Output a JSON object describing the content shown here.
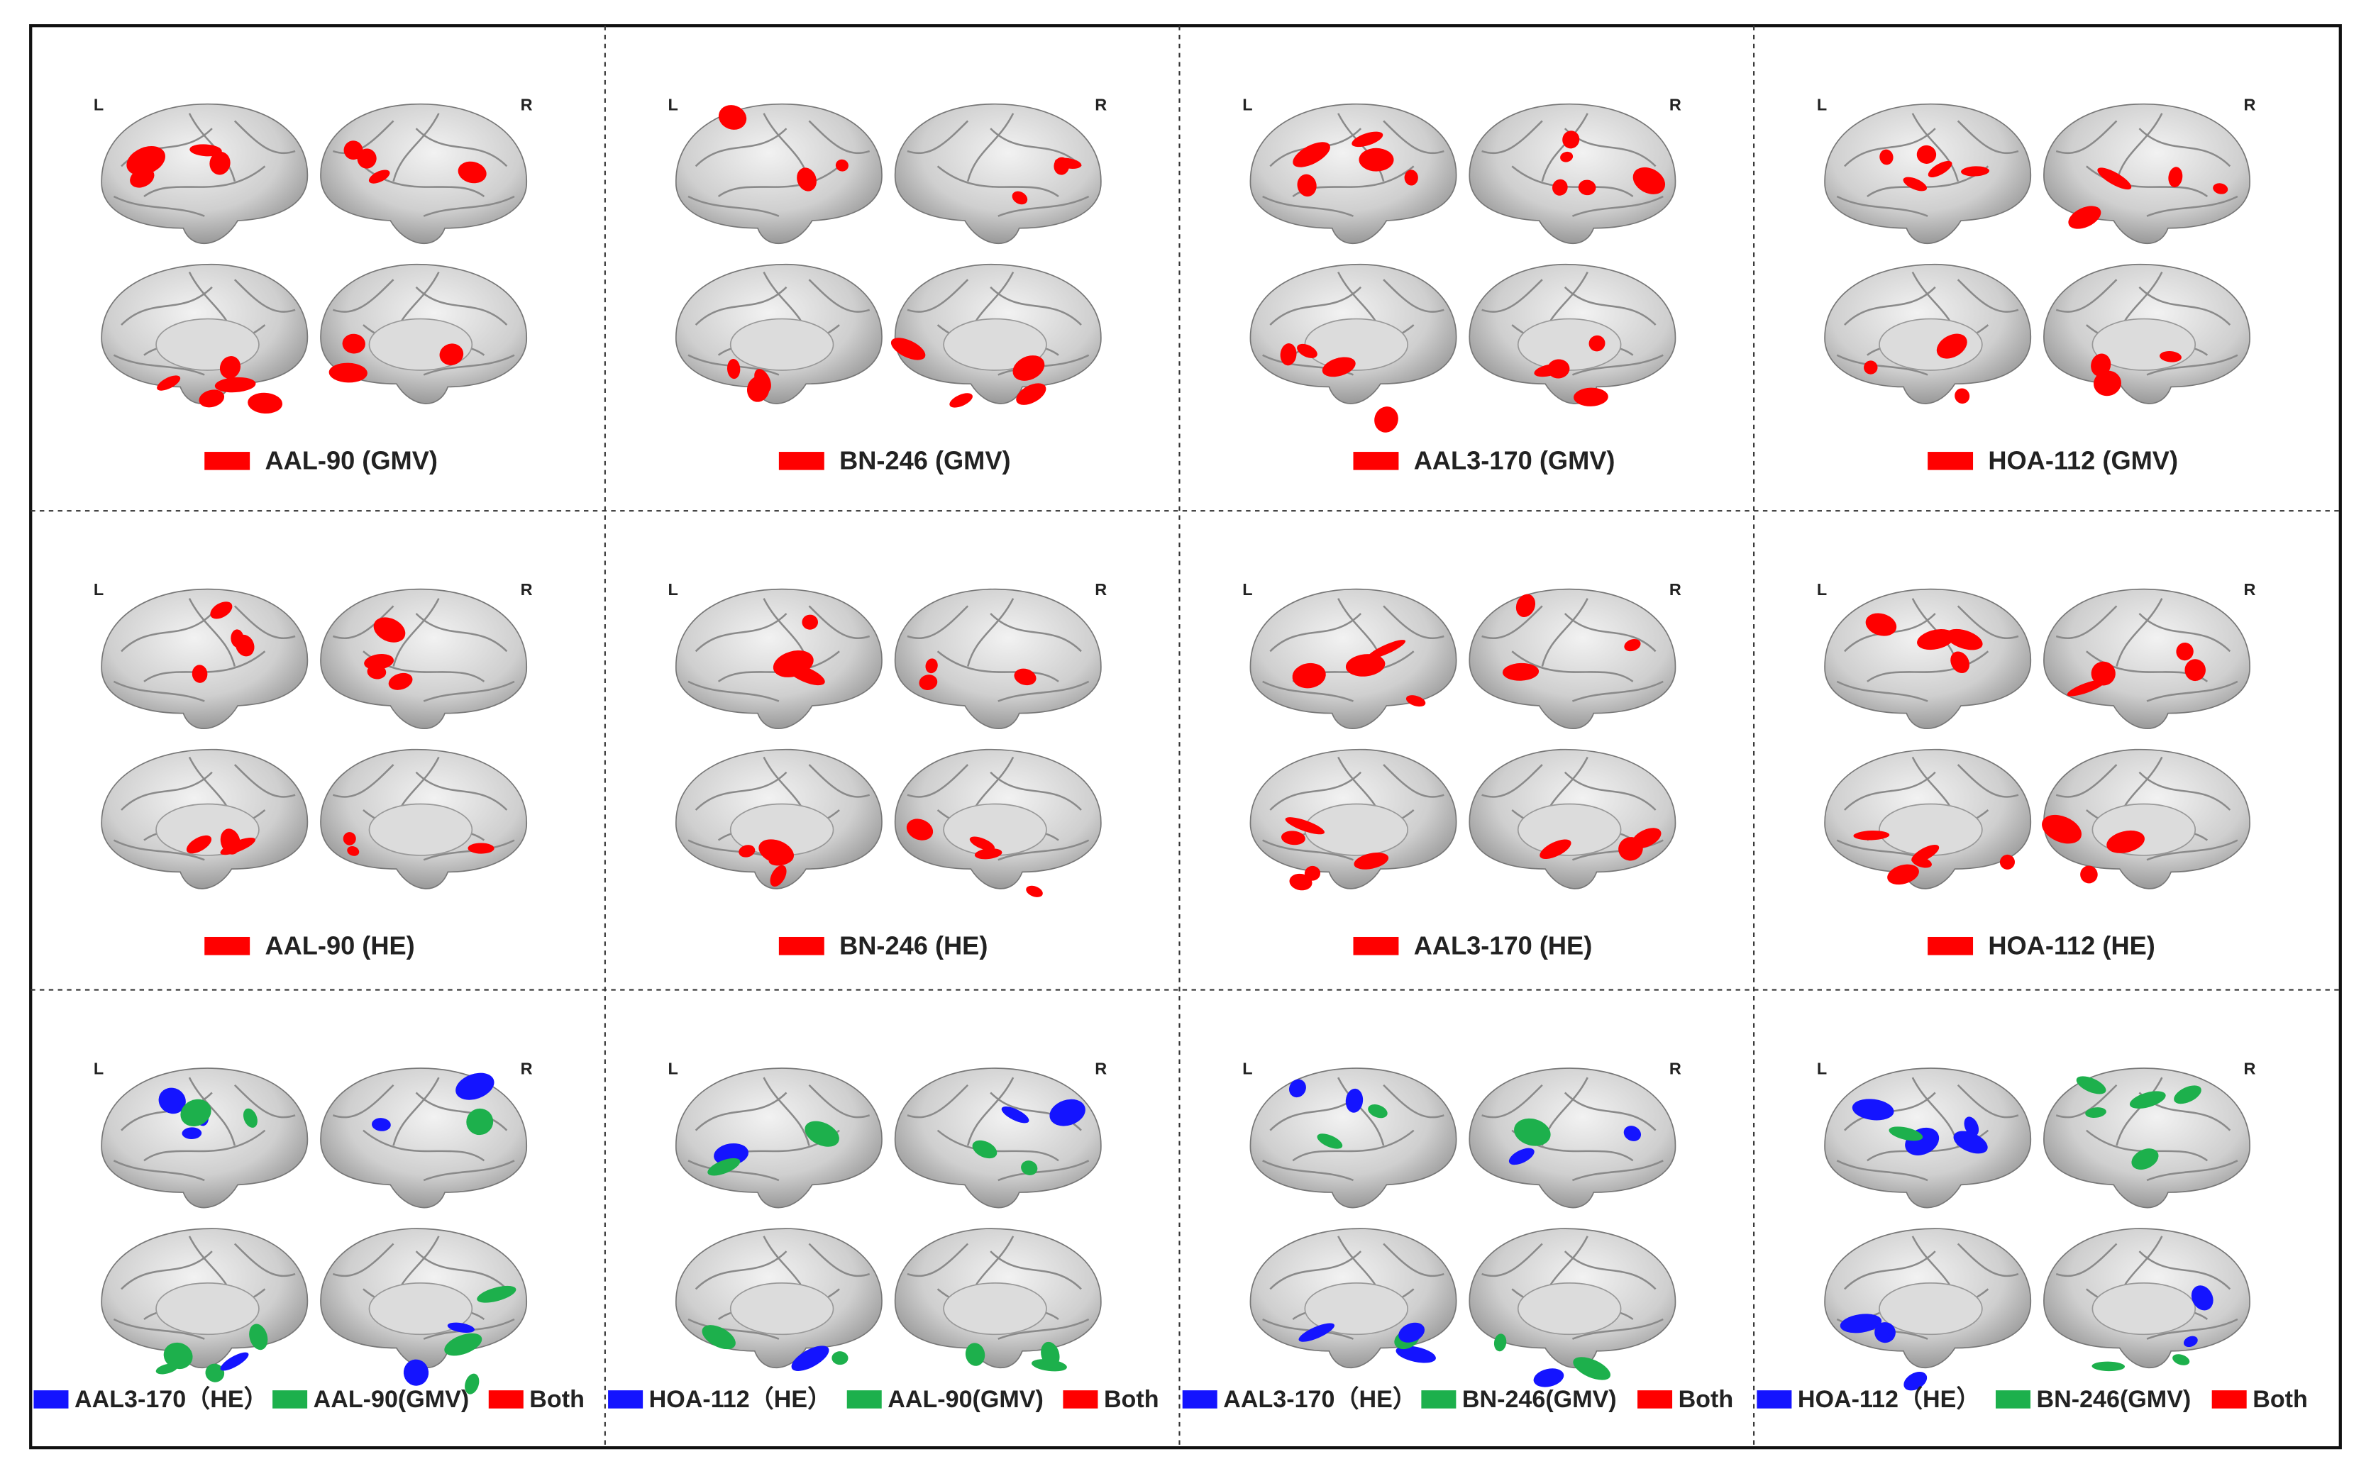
{
  "panels": [
    [
      {
        "left_label": "L",
        "right_label": "R",
        "legend": [
          {
            "label": "AAL-90 (GMV)",
            "color": "#ff0000"
          }
        ]
      },
      {
        "left_label": "L",
        "right_label": "R",
        "legend": [
          {
            "label": "BN-246 (GMV)",
            "color": "#ff0000"
          }
        ]
      },
      {
        "left_label": "L",
        "right_label": "R",
        "legend": [
          {
            "label": "AAL3-170 (GMV)",
            "color": "#ff0000"
          }
        ]
      },
      {
        "left_label": "L",
        "right_label": "R",
        "legend": [
          {
            "label": "HOA-112 (GMV)",
            "color": "#ff0000"
          }
        ]
      }
    ],
    [
      {
        "left_label": "L",
        "right_label": "R",
        "legend": [
          {
            "label": "AAL-90 (HE)",
            "color": "#ff0000"
          }
        ]
      },
      {
        "left_label": "L",
        "right_label": "R",
        "legend": [
          {
            "label": "BN-246 (HE)",
            "color": "#ff0000"
          }
        ]
      },
      {
        "left_label": "L",
        "right_label": "R",
        "legend": [
          {
            "label": "AAL3-170 (HE)",
            "color": "#ff0000"
          }
        ]
      },
      {
        "left_label": "L",
        "right_label": "R",
        "legend": [
          {
            "label": "HOA-112 (HE)",
            "color": "#ff0000"
          }
        ]
      }
    ],
    [
      {
        "left_label": "L",
        "right_label": "R",
        "legend": [
          {
            "label": "AAL3-170（HE）",
            "color": "#1414ff"
          },
          {
            "label": "AAL-90(GMV)",
            "color": "#1db04c"
          },
          {
            "label": "Both",
            "color": "#ff0000"
          }
        ]
      },
      {
        "left_label": "L",
        "right_label": "R",
        "legend": [
          {
            "label": "HOA-112（HE）",
            "color": "#1414ff"
          },
          {
            "label": "AAL-90(GMV)",
            "color": "#1db04c"
          },
          {
            "label": "Both",
            "color": "#ff0000"
          }
        ]
      },
      {
        "left_label": "L",
        "right_label": "R",
        "legend": [
          {
            "label": "AAL3-170（HE）",
            "color": "#1414ff"
          },
          {
            "label": "BN-246(GMV)",
            "color": "#1db04c"
          },
          {
            "label": "Both",
            "color": "#ff0000"
          }
        ]
      },
      {
        "left_label": "L",
        "right_label": "R",
        "legend": [
          {
            "label": "HOA-112（HE）",
            "color": "#1414ff"
          },
          {
            "label": "BN-246(GMV)",
            "color": "#1db04c"
          },
          {
            "label": "Both",
            "color": "#ff0000"
          }
        ]
      }
    ]
  ]
}
